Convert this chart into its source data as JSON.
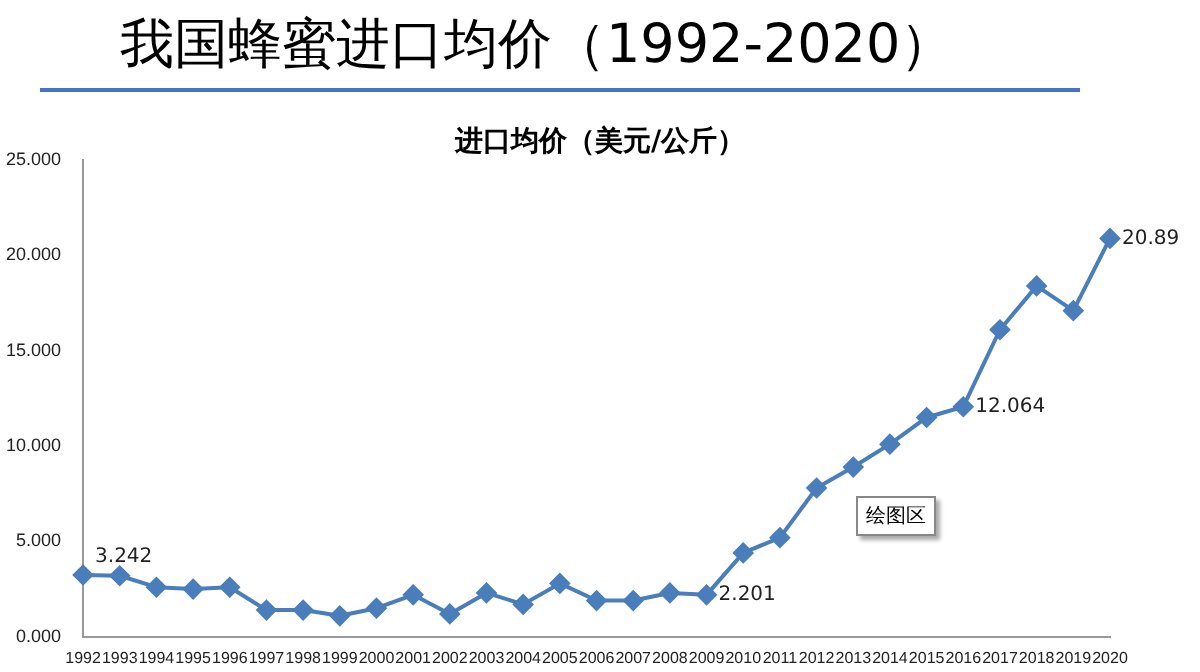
{
  "chart_data": {
    "type": "line",
    "title": "我国蜂蜜进口均价（1992-2020）",
    "subtitle": "进口均价（美元/公斤）",
    "categories": [
      "1992",
      "1993",
      "1994",
      "1995",
      "1996",
      "1997",
      "1998",
      "1999",
      "2000",
      "2001",
      "2002",
      "2003",
      "2004",
      "2005",
      "2006",
      "2007",
      "2008",
      "2009",
      "2010",
      "2011",
      "2012",
      "2013",
      "2014",
      "2015",
      "2016",
      "2017",
      "2018",
      "2019",
      "2020"
    ],
    "series": [
      {
        "color": "#4a7ebb",
        "values": [
          3.242,
          3.2,
          2.6,
          2.5,
          2.6,
          1.4,
          1.4,
          1.1,
          1.5,
          2.2,
          1.2,
          2.3,
          1.7,
          2.8,
          1.9,
          1.9,
          2.3,
          2.201,
          4.4,
          5.2,
          7.8,
          8.9,
          10.1,
          11.5,
          12.064,
          16.1,
          18.4,
          17.1,
          20.89
        ],
        "value_labels": [
          "3.242",
          null,
          null,
          null,
          null,
          null,
          null,
          null,
          null,
          null,
          null,
          null,
          null,
          null,
          null,
          null,
          null,
          "2.201",
          null,
          null,
          null,
          null,
          null,
          null,
          "12.064",
          null,
          null,
          null,
          "20.89"
        ]
      }
    ],
    "ylim": [
      0,
      25
    ],
    "yticks": [
      {
        "value": 0,
        "label": "0.000"
      },
      {
        "value": 5,
        "label": "5.000"
      },
      {
        "value": 10,
        "label": "10.000"
      },
      {
        "value": 15,
        "label": "15.000"
      },
      {
        "value": 20,
        "label": "20.000"
      },
      {
        "value": 25,
        "label": "25.000"
      }
    ],
    "grid": false,
    "legend": false,
    "marker": "diamond",
    "line_style": "solid",
    "annotations": [
      "绘图区"
    ]
  }
}
